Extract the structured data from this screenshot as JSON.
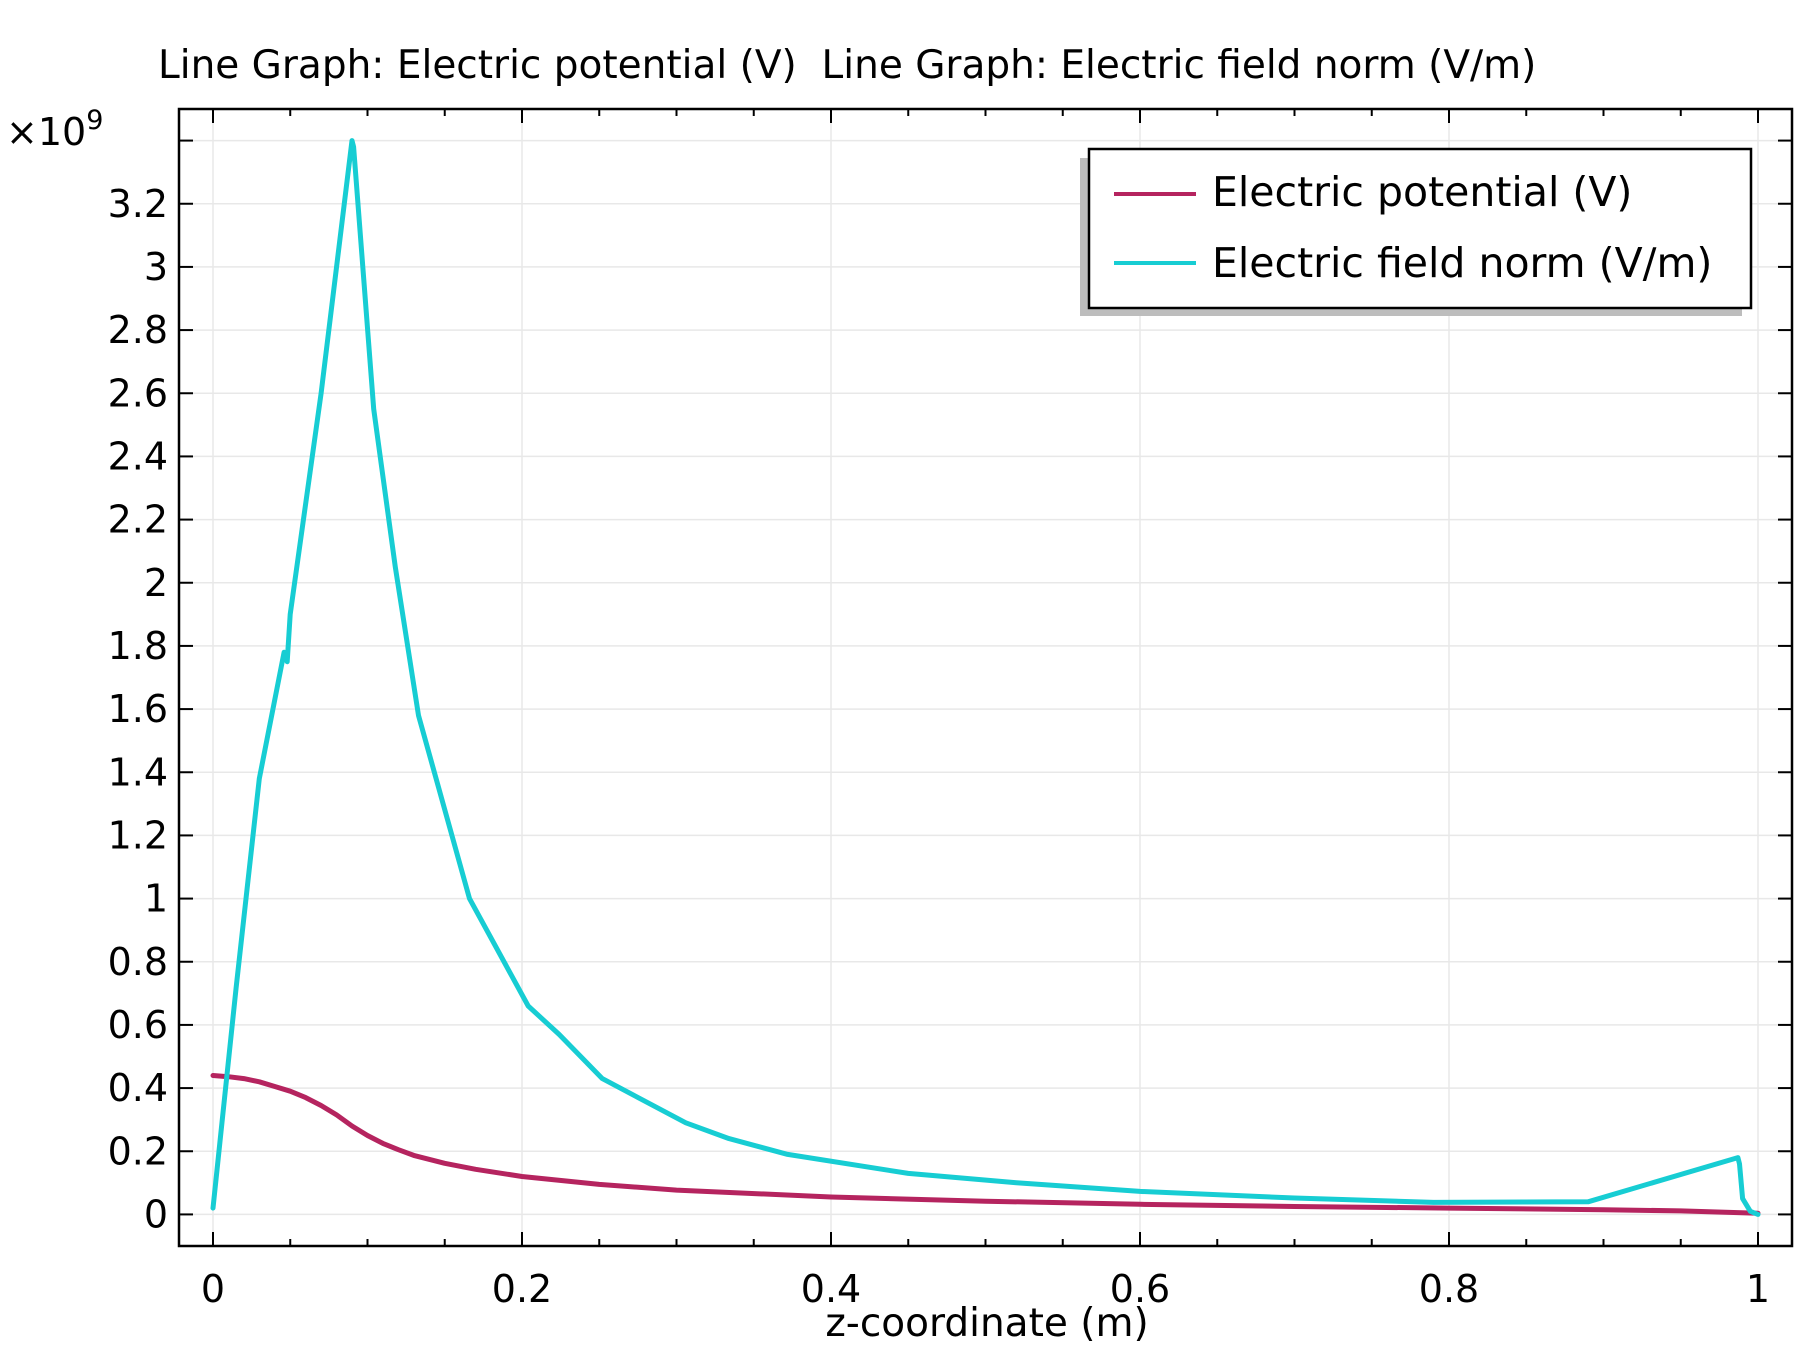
{
  "chart_data": {
    "type": "line",
    "title": "Line Graph: Electric potential (V)  Line Graph: Electric field norm (V/m)",
    "xlabel": "z-coordinate (m)",
    "ylabel": "",
    "y_multiplier": "×10",
    "y_multiplier_exponent": "9",
    "xlim": [
      -0.022,
      1.022
    ],
    "ylim": [
      -0.1,
      3.5
    ],
    "x_ticks": [
      "0",
      "0.2",
      "0.4",
      "0.6",
      "0.8",
      "1"
    ],
    "x_tick_values": [
      0,
      0.2,
      0.4,
      0.6,
      0.8,
      1
    ],
    "y_ticks": [
      "0",
      "0.2",
      "0.4",
      "0.6",
      "0.8",
      "1",
      "1.2",
      "1.4",
      "1.6",
      "1.8",
      "2",
      "2.2",
      "2.4",
      "2.6",
      "2.8",
      "3",
      "3.2"
    ],
    "y_tick_values": [
      0,
      0.2,
      0.4,
      0.6,
      0.8,
      1,
      1.2,
      1.4,
      1.6,
      1.8,
      2,
      2.2,
      2.4,
      2.6,
      2.8,
      3,
      3.2
    ],
    "grid": true,
    "legend_position": "top-right",
    "series": [
      {
        "name": "Electric potential (V)",
        "color": "#b5245f",
        "x": [
          0,
          0.01,
          0.02,
          0.03,
          0.04,
          0.05,
          0.06,
          0.07,
          0.08,
          0.09,
          0.1,
          0.11,
          0.12,
          0.13,
          0.15,
          0.17,
          0.2,
          0.25,
          0.3,
          0.4,
          0.5,
          0.6,
          0.7,
          0.8,
          0.9,
          0.95,
          1.0
        ],
        "y": [
          0.44,
          0.436,
          0.43,
          0.42,
          0.405,
          0.39,
          0.37,
          0.345,
          0.315,
          0.28,
          0.25,
          0.225,
          0.205,
          0.187,
          0.162,
          0.143,
          0.12,
          0.095,
          0.077,
          0.055,
          0.042,
          0.032,
          0.025,
          0.02,
          0.015,
          0.011,
          0.004
        ]
      },
      {
        "name": "Electric field norm (V/m)",
        "color": "#17cdd3",
        "x": [
          0,
          0.015,
          0.03,
          0.046,
          0.048,
          0.05,
          0.07,
          0.09,
          0.091,
          0.104,
          0.118,
          0.133,
          0.166,
          0.204,
          0.224,
          0.252,
          0.306,
          0.334,
          0.372,
          0.45,
          0.52,
          0.6,
          0.7,
          0.79,
          0.89,
          0.987,
          0.988,
          0.99,
          0.995,
          1.0
        ],
        "y": [
          0.02,
          0.72,
          1.38,
          1.78,
          1.75,
          1.9,
          2.6,
          3.4,
          3.38,
          2.55,
          2.05,
          1.58,
          1.0,
          0.66,
          0.57,
          0.43,
          0.29,
          0.24,
          0.19,
          0.13,
          0.1,
          0.073,
          0.052,
          0.038,
          0.04,
          0.18,
          0.16,
          0.05,
          0.01,
          0.0
        ]
      }
    ]
  }
}
